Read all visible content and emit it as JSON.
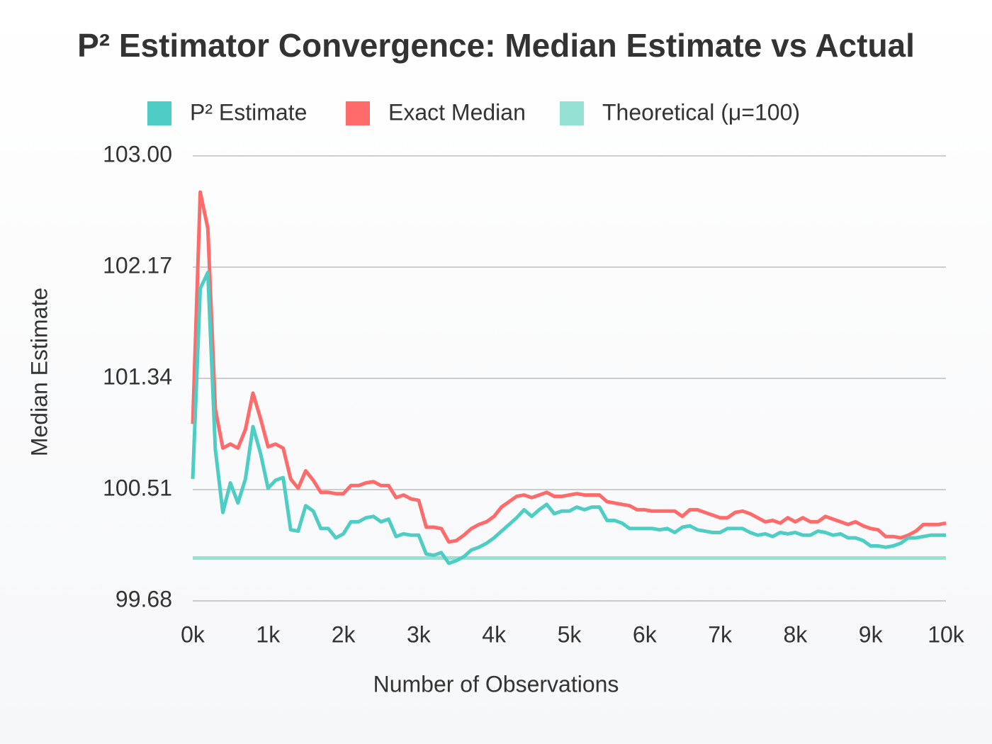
{
  "chart_data": {
    "type": "line",
    "title": "P² Estimator Convergence: Median Estimate vs Actual",
    "x_label": "Number of Observations",
    "y_label": "Median Estimate",
    "x": [
      0,
      100,
      200,
      300,
      400,
      500,
      600,
      700,
      800,
      900,
      1000,
      1100,
      1200,
      1300,
      1400,
      1500,
      1600,
      1700,
      1800,
      1900,
      2000,
      2100,
      2200,
      2300,
      2400,
      2500,
      2600,
      2700,
      2800,
      2900,
      3000,
      3100,
      3200,
      3300,
      3400,
      3500,
      3600,
      3700,
      3800,
      3900,
      4000,
      4100,
      4200,
      4300,
      4400,
      4500,
      4600,
      4700,
      4800,
      4900,
      5000,
      5100,
      5200,
      5300,
      5400,
      5500,
      5600,
      5700,
      5800,
      5900,
      6000,
      6100,
      6200,
      6300,
      6400,
      6500,
      6600,
      6700,
      6800,
      6900,
      7000,
      7100,
      7200,
      7300,
      7400,
      7500,
      7600,
      7700,
      7800,
      7900,
      8000,
      8100,
      8200,
      8300,
      8400,
      8500,
      8600,
      8700,
      8800,
      8900,
      9000,
      9100,
      9200,
      9300,
      9400,
      9500,
      9600,
      9700,
      9800,
      9900,
      10000
    ],
    "series": [
      {
        "name": "P² Estimate",
        "color": "#4ecdc4",
        "values": [
          100.59,
          102.01,
          102.13,
          100.81,
          100.34,
          100.56,
          100.41,
          100.59,
          100.98,
          100.78,
          100.52,
          100.58,
          100.6,
          100.21,
          100.2,
          100.39,
          100.35,
          100.22,
          100.22,
          100.15,
          100.18,
          100.27,
          100.27,
          100.3,
          100.31,
          100.27,
          100.29,
          100.16,
          100.18,
          100.17,
          100.17,
          100.03,
          100.02,
          100.04,
          99.96,
          99.98,
          100.01,
          100.06,
          100.08,
          100.11,
          100.15,
          100.2,
          100.25,
          100.3,
          100.36,
          100.31,
          100.36,
          100.4,
          100.33,
          100.35,
          100.35,
          100.38,
          100.36,
          100.38,
          100.38,
          100.28,
          100.28,
          100.26,
          100.22,
          100.22,
          100.22,
          100.22,
          100.21,
          100.22,
          100.19,
          100.23,
          100.24,
          100.21,
          100.2,
          100.19,
          100.19,
          100.22,
          100.22,
          100.22,
          100.19,
          100.17,
          100.18,
          100.16,
          100.19,
          100.18,
          100.19,
          100.17,
          100.17,
          100.2,
          100.19,
          100.17,
          100.18,
          100.15,
          100.15,
          100.13,
          100.09,
          100.09,
          100.08,
          100.09,
          100.11,
          100.15,
          100.15,
          100.16,
          100.17,
          100.17,
          100.17
        ]
      },
      {
        "name": "Exact Median",
        "color": "#ff6b6b",
        "values": [
          101.0,
          102.73,
          102.46,
          101.11,
          100.82,
          100.85,
          100.82,
          100.96,
          101.23,
          101.04,
          100.83,
          100.85,
          100.82,
          100.59,
          100.52,
          100.65,
          100.58,
          100.49,
          100.49,
          100.48,
          100.48,
          100.54,
          100.54,
          100.56,
          100.57,
          100.54,
          100.54,
          100.45,
          100.47,
          100.44,
          100.43,
          100.23,
          100.23,
          100.22,
          100.12,
          100.13,
          100.17,
          100.22,
          100.25,
          100.27,
          100.31,
          100.38,
          100.42,
          100.46,
          100.47,
          100.45,
          100.47,
          100.49,
          100.46,
          100.46,
          100.47,
          100.48,
          100.47,
          100.47,
          100.47,
          100.42,
          100.41,
          100.4,
          100.39,
          100.36,
          100.36,
          100.35,
          100.35,
          100.35,
          100.35,
          100.31,
          100.36,
          100.36,
          100.34,
          100.32,
          100.3,
          100.3,
          100.34,
          100.35,
          100.33,
          100.3,
          100.27,
          100.28,
          100.26,
          100.3,
          100.27,
          100.3,
          100.27,
          100.27,
          100.31,
          100.29,
          100.27,
          100.25,
          100.27,
          100.24,
          100.22,
          100.21,
          100.16,
          100.16,
          100.15,
          100.17,
          100.2,
          100.25,
          100.25,
          100.25,
          100.26
        ]
      },
      {
        "name": "Theoretical (μ=100)",
        "color": "#95e1d3",
        "x": [
          0,
          10000
        ],
        "values": [
          100,
          100
        ]
      }
    ],
    "xlim": [
      0,
      10000
    ],
    "xticks": [
      {
        "value": 0,
        "label": "0k"
      },
      {
        "value": 1000,
        "label": "1k"
      },
      {
        "value": 2000,
        "label": "2k"
      },
      {
        "value": 3000,
        "label": "3k"
      },
      {
        "value": 4000,
        "label": "4k"
      },
      {
        "value": 5000,
        "label": "5k"
      },
      {
        "value": 6000,
        "label": "6k"
      },
      {
        "value": 7000,
        "label": "7k"
      },
      {
        "value": 8000,
        "label": "8k"
      },
      {
        "value": 9000,
        "label": "9k"
      },
      {
        "value": 10000,
        "label": "10k"
      }
    ],
    "ylim": [
      99.68,
      103
    ],
    "yticks": [
      99.68,
      100.51,
      101.34,
      102.17,
      {
        "value": 103,
        "label": "103.00"
      }
    ],
    "grid": true,
    "legend": "top"
  }
}
